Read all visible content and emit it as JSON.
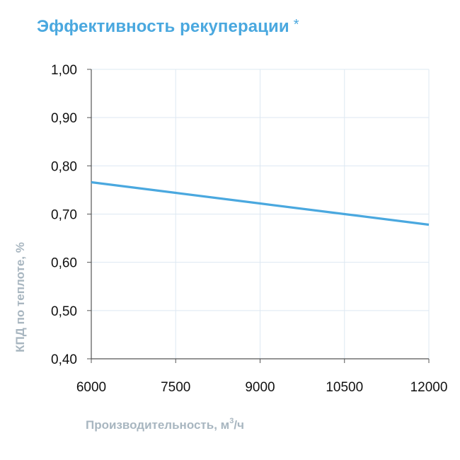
{
  "chart_data": {
    "type": "line",
    "title": "Эффективность рекуперации",
    "title_mark": "*",
    "xlabel": "Производительность, м",
    "xlabel_sup": "3",
    "xlabel_tail": "/ч",
    "ylabel": "КПД по теплоте, %",
    "xlim": [
      6000,
      12000
    ],
    "ylim": [
      0.4,
      1.0
    ],
    "x_ticks": [
      6000,
      7500,
      9000,
      10500,
      12000
    ],
    "x_tick_labels": [
      "6000",
      "7500",
      "9000",
      "10500",
      "12000"
    ],
    "y_ticks": [
      0.4,
      0.5,
      0.6,
      0.7,
      0.8,
      0.9,
      1.0
    ],
    "y_tick_labels": [
      "0,40",
      "0,50",
      "0,60",
      "0,70",
      "0,80",
      "0,90",
      "1,00"
    ],
    "grid": true,
    "series": [
      {
        "x": [
          6000,
          7500,
          9000,
          10500,
          12000
        ],
        "y": [
          0.766,
          0.744,
          0.722,
          0.7,
          0.678
        ],
        "color": "#4aa8df"
      }
    ]
  },
  "colors": {
    "accent": "#4aa8df",
    "grid": "#dde8f2",
    "axis": "#555555",
    "axis_label": "#a8b6c0"
  }
}
